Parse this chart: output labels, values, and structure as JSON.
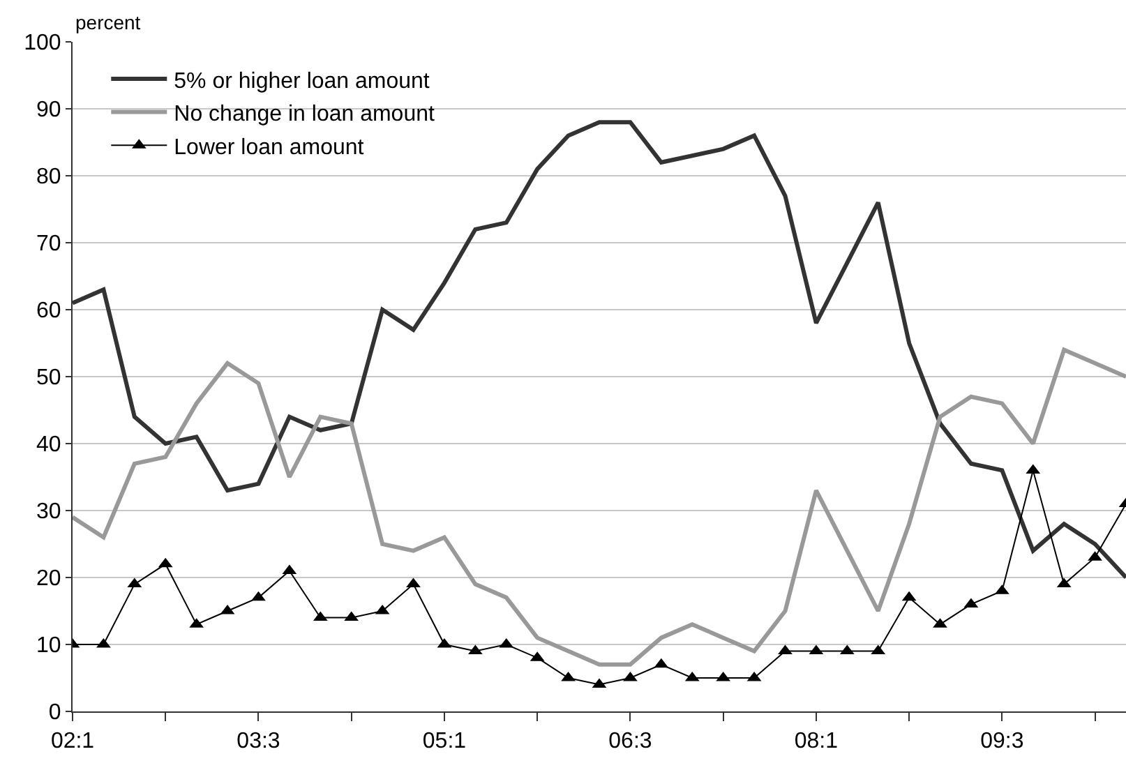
{
  "chart_data": {
    "type": "line",
    "ylabel": "percent",
    "categories": [
      "02:1",
      null,
      null,
      null,
      null,
      null,
      "03:3",
      null,
      null,
      null,
      null,
      null,
      "05:1",
      null,
      null,
      null,
      null,
      null,
      "06:3",
      null,
      null,
      null,
      null,
      null,
      "08:1",
      null,
      null,
      null,
      null,
      null,
      "09:3",
      null,
      null,
      null,
      null
    ],
    "series": [
      {
        "name": "5% or higher loan amount",
        "color": "#333333",
        "marker": "none",
        "values": [
          61,
          63,
          44,
          40,
          41,
          33,
          34,
          44,
          42,
          43,
          60,
          57,
          64,
          72,
          73,
          81,
          86,
          88,
          88,
          82,
          83,
          84,
          86,
          77,
          58,
          67,
          76,
          55,
          43,
          37,
          36,
          24,
          28,
          25,
          20
        ]
      },
      {
        "name": "No change in loan amount",
        "color": "#999999",
        "marker": "none",
        "values": [
          29,
          26,
          37,
          38,
          46,
          52,
          49,
          35,
          44,
          43,
          25,
          24,
          26,
          19,
          17,
          11,
          9,
          7,
          7,
          11,
          13,
          11,
          9,
          15,
          33,
          24,
          15,
          28,
          44,
          47,
          46,
          40,
          54,
          52,
          50
        ]
      },
      {
        "name": "Lower loan amount",
        "color": "#000000",
        "marker": "triangle",
        "values": [
          10,
          10,
          19,
          22,
          13,
          15,
          17,
          21,
          14,
          14,
          15,
          19,
          10,
          9,
          10,
          8,
          5,
          4,
          5,
          7,
          5,
          5,
          5,
          9,
          9,
          9,
          9,
          17,
          13,
          16,
          18,
          36,
          19,
          23,
          31
        ]
      }
    ],
    "ylim": [
      0,
      100
    ],
    "yticks": [
      0,
      10,
      20,
      30,
      40,
      50,
      60,
      70,
      80,
      90,
      100
    ],
    "grid": "y",
    "legend": "top left"
  }
}
